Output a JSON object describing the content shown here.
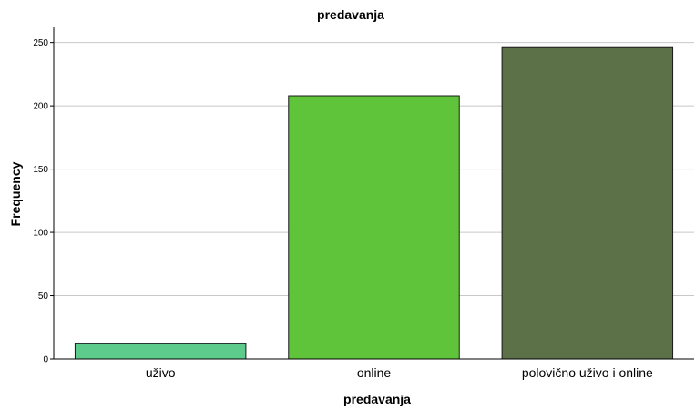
{
  "chart_data": {
    "type": "bar",
    "title": "predavanja",
    "xlabel": "predavanja",
    "ylabel": "Frequency",
    "categories": [
      "uživo",
      "online",
      "polovično uživo i online"
    ],
    "values": [
      12,
      208,
      246
    ],
    "colors": [
      "#5ccb8c",
      "#5fc43a",
      "#5c7147"
    ],
    "ylim": [
      0,
      262
    ],
    "yticks": [
      0,
      50,
      100,
      150,
      200,
      250
    ],
    "grid": true,
    "legend": "none"
  }
}
